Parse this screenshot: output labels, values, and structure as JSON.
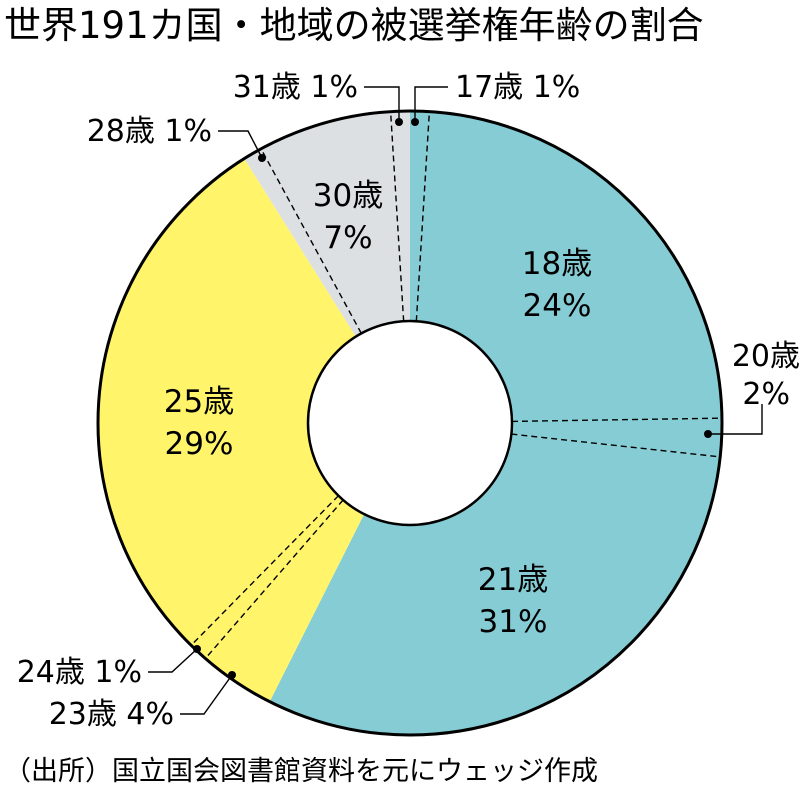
{
  "title": "世界191カ国・地域の被選挙権年齢の割合",
  "source": "（出所）国立国会図書館資料を元にウェッジ作成",
  "colors": {
    "teal": "#86ccd4",
    "yellow": "#fff46a",
    "gray": "#dde0e3",
    "outline": "#000000",
    "divider": "#000000"
  },
  "chart_data": {
    "type": "pie",
    "variant": "donut",
    "title": "世界191カ国・地域の被選挙権年齢の割合",
    "categories": [
      "17歳",
      "18歳",
      "20歳",
      "21歳",
      "23歳",
      "24歳",
      "25歳",
      "28歳",
      "30歳",
      "31歳"
    ],
    "values": [
      1,
      24,
      2,
      31,
      4,
      1,
      29,
      1,
      7,
      1
    ],
    "unit": "%",
    "start": "12 o'clock",
    "direction": "clockwise",
    "slices": [
      {
        "age": "17歳",
        "percent": "1%",
        "value": 1,
        "color": "teal",
        "label_mode": "callout",
        "callout_side": "top-right"
      },
      {
        "age": "18歳",
        "percent": "24%",
        "value": 24,
        "color": "teal",
        "label_mode": "inside"
      },
      {
        "age": "20歳",
        "percent": "2%",
        "value": 2,
        "color": "teal",
        "label_mode": "callout",
        "callout_side": "right"
      },
      {
        "age": "21歳",
        "percent": "31%",
        "value": 31,
        "color": "teal",
        "label_mode": "inside"
      },
      {
        "age": "23歳",
        "percent": "4%",
        "value": 4,
        "color": "yellow",
        "label_mode": "callout",
        "callout_side": "bottom-left"
      },
      {
        "age": "24歳",
        "percent": "1%",
        "value": 1,
        "color": "yellow",
        "label_mode": "callout",
        "callout_side": "left"
      },
      {
        "age": "25歳",
        "percent": "29%",
        "value": 29,
        "color": "yellow",
        "label_mode": "inside"
      },
      {
        "age": "28歳",
        "percent": "1%",
        "value": 1,
        "color": "gray",
        "label_mode": "callout",
        "callout_side": "top-left"
      },
      {
        "age": "30歳",
        "percent": "7%",
        "value": 7,
        "color": "gray",
        "label_mode": "inside"
      },
      {
        "age": "31歳",
        "percent": "1%",
        "value": 1,
        "color": "gray",
        "label_mode": "callout",
        "callout_side": "top"
      }
    ]
  }
}
